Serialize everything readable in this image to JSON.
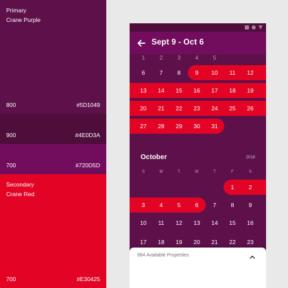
{
  "palette": {
    "swatches": [
      {
        "name_lines": [
          "Primary",
          "Crane Purple"
        ],
        "tone": "800",
        "hex": "#5D1049",
        "color": "#5d1049"
      },
      {
        "name_lines": [],
        "tone": "900",
        "hex": "#4E0D3A",
        "color": "#4e0d3a"
      },
      {
        "name_lines": [],
        "tone": "700",
        "hex": "#720D5D",
        "color": "#720d5d"
      },
      {
        "name_lines": [
          "Secondary",
          "Crane Red"
        ],
        "tone": "700",
        "hex": "#E30425",
        "color": "#e30425"
      }
    ]
  },
  "status_bar": {
    "icons": [
      "square-icon",
      "circle-icon",
      "triangle-icon"
    ]
  },
  "app_bar": {
    "back_icon": "arrow-left-icon",
    "title": "Sept 9 - Oct 6"
  },
  "september_partial": {
    "faded_top_row": [
      "1",
      "2",
      "3",
      "4",
      "5"
    ],
    "weeks": [
      [
        "6",
        "7",
        "8",
        "9",
        "10",
        "11",
        "12"
      ],
      [
        "13",
        "14",
        "15",
        "16",
        "17",
        "18",
        "19"
      ],
      [
        "20",
        "21",
        "22",
        "23",
        "24",
        "25",
        "26"
      ],
      [
        "27",
        "28",
        "29",
        "30",
        "31"
      ]
    ]
  },
  "october": {
    "title": "October",
    "year": "2018",
    "weekdays": [
      "S",
      "M",
      "T",
      "W",
      "T",
      "F",
      "S"
    ],
    "weeks": [
      [
        "",
        "",
        "",
        "",
        "",
        "1",
        "2"
      ],
      [
        "3",
        "4",
        "5",
        "6",
        "7",
        "8",
        "9"
      ],
      [
        "10",
        "11",
        "12",
        "13",
        "14",
        "15",
        "16"
      ],
      [
        "17",
        "18",
        "19",
        "20",
        "21",
        "22",
        "23"
      ]
    ]
  },
  "bottom_sheet": {
    "label": "984 Available Properties",
    "chevron_icon": "chevron-up-icon"
  },
  "colors": {
    "primary": "#5d1049",
    "primary_dark": "#4e0d3a",
    "primary_light": "#720d5d",
    "secondary": "#e30425",
    "background": "#e9e9e9"
  }
}
